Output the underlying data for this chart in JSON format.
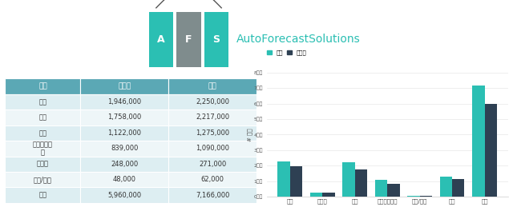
{
  "categories": [
    "北美",
    "南美洲",
    "欧洲",
    "亚洲其他地区",
    "中东/非洲",
    "中国",
    "总计"
  ],
  "forecast": [
    2250000,
    271000,
    2217000,
    1090000,
    62000,
    1275000,
    7166000
  ],
  "announced": [
    1946000,
    248000,
    1758000,
    839000,
    48000,
    1122000,
    5960000
  ],
  "forecast_color": "#2bbfb3",
  "announced_color": "#2e4053",
  "ylim": [
    0,
    8000000
  ],
  "yticks": [
    0,
    1000000,
    2000000,
    3000000,
    4000000,
    5000000,
    6000000,
    7000000,
    8000000
  ],
  "legend_forecast": "预计",
  "legend_announced": "已宣布",
  "ylabel": "# 百万",
  "table_header_bg": "#5ba8b5",
  "table_header_text": "#ffffff",
  "table_row_colors": [
    "#ddeef2",
    "#eef6f8"
  ],
  "table_last_row_bg": "#ddeef2",
  "table_col0": "地区",
  "table_col1": "已宣布",
  "table_col2": "预计",
  "table_rows": [
    [
      "北美",
      "1,946,000",
      "2,250,000"
    ],
    [
      "欧洲",
      "1,758,000",
      "2,217,000"
    ],
    [
      "中国",
      "1,122,000",
      "1,275,000"
    ],
    [
      "亚洲其他地\n区",
      "839,000",
      "1,090,000"
    ],
    [
      "南美洲",
      "248,000",
      "271,000"
    ],
    [
      "中东/非洲",
      "48,000",
      "62,000"
    ],
    [
      "总计",
      "5,960,000",
      "7,166,000"
    ]
  ],
  "afs_green": "#2bbfb3",
  "afs_gray": "#7f8c8d",
  "afs_text_color": "#2bbfb3",
  "logo_line_color": "#555555",
  "dot1_color": "#2e4053",
  "dot2_color": "#2e4053"
}
